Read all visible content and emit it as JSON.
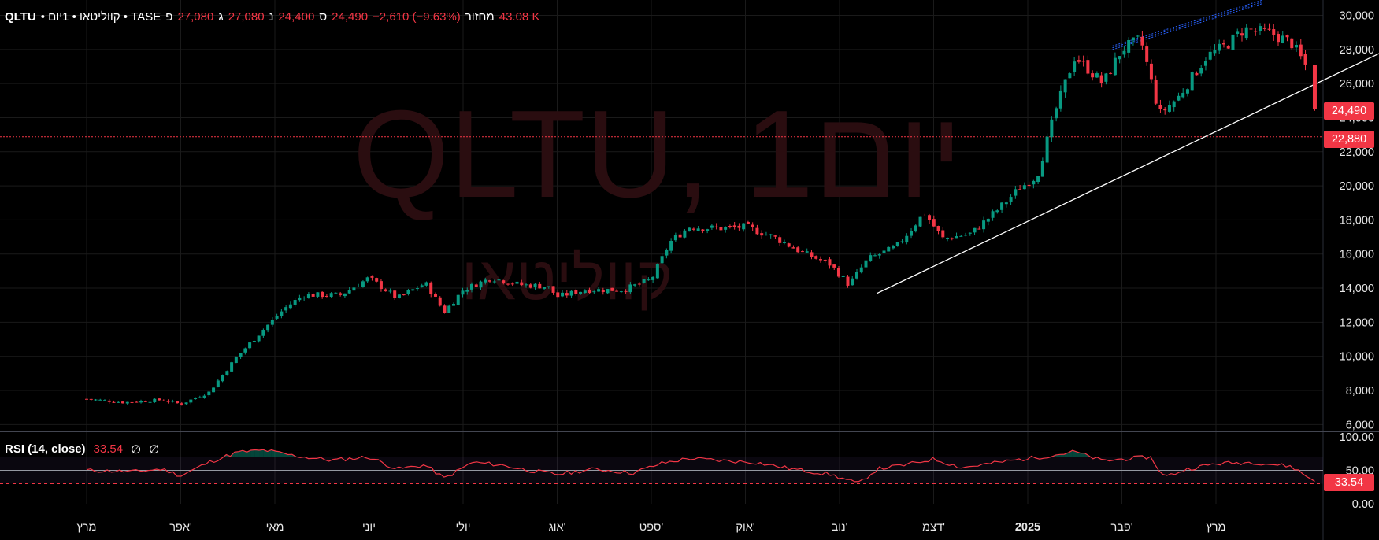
{
  "header": {
    "symbol": "QLTU",
    "meta": "• קווליטאו • 1יום • TASE",
    "open_label": "פ",
    "open": "27,080",
    "high_label": "ג",
    "high": "27,080",
    "low_label": "נ",
    "low": "24,400",
    "close_label": "ס",
    "close": "24,490",
    "change": "−2,610 (−9.63%)",
    "volume_label": "מחזור",
    "volume": "43.08 K"
  },
  "watermark": {
    "line1": "QLTU, 1יום",
    "line2": "קווליטאו"
  },
  "price_tags": {
    "last": "24,490",
    "level": "22,880"
  },
  "rsi": {
    "name": "RSI (14, close)",
    "value": "33.54",
    "empty1": "∅",
    "empty2": "∅",
    "tag": "33.54",
    "ticks": [
      "100.00",
      "50.00",
      "0.00"
    ]
  },
  "colors": {
    "up": "#089981",
    "down": "#f23645",
    "rsi_line": "#f23645",
    "trendline": "#ffffff",
    "channel": "#2962ff",
    "grid": "#1a1a1a"
  },
  "chart_data": {
    "type": "candlestick",
    "symbol": "QLTU",
    "exchange": "TASE",
    "interval": "1 day",
    "y_ticks": [
      6000,
      8000,
      10000,
      12000,
      14000,
      16000,
      18000,
      20000,
      22000,
      24000,
      26000,
      28000,
      30000
    ],
    "y_tick_labels": [
      "6,000",
      "8,000",
      "10,000",
      "12,000",
      "14,000",
      "16,000",
      "18,000",
      "20,000",
      "22,000",
      "24,000",
      "26,000",
      "28,000",
      "30,000"
    ],
    "ylim": [
      5600,
      30900
    ],
    "x_tick_labels": [
      "מרץ",
      "אפר'",
      "מאי",
      "יוני",
      "יולי",
      "אוג'",
      "ספט'",
      "אוק'",
      "נוב'",
      "דצמ'",
      "2025",
      "פבר'",
      "מרץ"
    ],
    "x_tick_month_index": [
      0,
      1,
      2,
      3,
      4,
      5,
      6,
      7,
      8,
      9,
      10,
      11,
      12
    ],
    "horizontal_line": 22880,
    "trendline": {
      "start": {
        "month": 8.4,
        "value": 13700
      },
      "end": {
        "month": 13.9,
        "value": 28200
      }
    },
    "channel_line": {
      "start": {
        "month": 10.9,
        "value": 28000
      },
      "end": {
        "month": 12.5,
        "value": 30700
      }
    },
    "close_points": [
      {
        "m": 0.0,
        "v": 7500
      },
      {
        "m": 0.4,
        "v": 7300
      },
      {
        "m": 0.8,
        "v": 7450
      },
      {
        "m": 1.0,
        "v": 7200
      },
      {
        "m": 1.3,
        "v": 7900
      },
      {
        "m": 1.6,
        "v": 10000
      },
      {
        "m": 1.9,
        "v": 11700
      },
      {
        "m": 2.1,
        "v": 12800
      },
      {
        "m": 2.3,
        "v": 13600
      },
      {
        "m": 2.7,
        "v": 13600
      },
      {
        "m": 3.0,
        "v": 14600
      },
      {
        "m": 3.3,
        "v": 13400
      },
      {
        "m": 3.6,
        "v": 14300
      },
      {
        "m": 3.8,
        "v": 12600
      },
      {
        "m": 4.0,
        "v": 13900
      },
      {
        "m": 4.3,
        "v": 14600
      },
      {
        "m": 4.6,
        "v": 14200
      },
      {
        "m": 4.9,
        "v": 14100
      },
      {
        "m": 5.0,
        "v": 13500
      },
      {
        "m": 5.3,
        "v": 13900
      },
      {
        "m": 5.7,
        "v": 13900
      },
      {
        "m": 6.0,
        "v": 14500
      },
      {
        "m": 6.2,
        "v": 16700
      },
      {
        "m": 6.4,
        "v": 17600
      },
      {
        "m": 6.7,
        "v": 17500
      },
      {
        "m": 7.0,
        "v": 17600
      },
      {
        "m": 7.3,
        "v": 17000
      },
      {
        "m": 7.6,
        "v": 16100
      },
      {
        "m": 7.9,
        "v": 15400
      },
      {
        "m": 8.1,
        "v": 14200
      },
      {
        "m": 8.3,
        "v": 15700
      },
      {
        "m": 8.6,
        "v": 16400
      },
      {
        "m": 8.9,
        "v": 18400
      },
      {
        "m": 9.1,
        "v": 16900
      },
      {
        "m": 9.4,
        "v": 17200
      },
      {
        "m": 9.7,
        "v": 18700
      },
      {
        "m": 9.9,
        "v": 19800
      },
      {
        "m": 10.1,
        "v": 20600
      },
      {
        "m": 10.3,
        "v": 24500
      },
      {
        "m": 10.5,
        "v": 27600
      },
      {
        "m": 10.8,
        "v": 26000
      },
      {
        "m": 11.0,
        "v": 28000
      },
      {
        "m": 11.2,
        "v": 28600
      },
      {
        "m": 11.4,
        "v": 24200
      },
      {
        "m": 11.6,
        "v": 25200
      },
      {
        "m": 11.9,
        "v": 27600
      },
      {
        "m": 12.1,
        "v": 28200
      },
      {
        "m": 12.3,
        "v": 29200
      },
      {
        "m": 12.6,
        "v": 28900
      },
      {
        "m": 12.8,
        "v": 28400
      },
      {
        "m": 12.95,
        "v": 27080
      },
      {
        "m": 13.05,
        "v": 24490
      }
    ],
    "last_candle": {
      "open": 27080,
      "high": 27080,
      "low": 24400,
      "close": 24490,
      "change": -2610,
      "change_pct": -9.63
    },
    "volume": "43.08 K",
    "rsi": {
      "period": 14,
      "source": "close",
      "levels": [
        70,
        50,
        30
      ],
      "ylim": [
        0,
        100
      ],
      "points": [
        {
          "m": 0.0,
          "v": 50
        },
        {
          "m": 0.5,
          "v": 48
        },
        {
          "m": 0.8,
          "v": 52
        },
        {
          "m": 1.0,
          "v": 42
        },
        {
          "m": 1.3,
          "v": 62
        },
        {
          "m": 1.6,
          "v": 77
        },
        {
          "m": 1.9,
          "v": 80
        },
        {
          "m": 2.2,
          "v": 72
        },
        {
          "m": 2.6,
          "v": 65
        },
        {
          "m": 3.0,
          "v": 70
        },
        {
          "m": 3.3,
          "v": 52
        },
        {
          "m": 3.6,
          "v": 58
        },
        {
          "m": 3.8,
          "v": 38
        },
        {
          "m": 4.1,
          "v": 62
        },
        {
          "m": 4.4,
          "v": 58
        },
        {
          "m": 4.7,
          "v": 50
        },
        {
          "m": 5.0,
          "v": 44
        },
        {
          "m": 5.4,
          "v": 52
        },
        {
          "m": 5.8,
          "v": 46
        },
        {
          "m": 6.1,
          "v": 60
        },
        {
          "m": 6.4,
          "v": 68
        },
        {
          "m": 6.8,
          "v": 64
        },
        {
          "m": 7.1,
          "v": 62
        },
        {
          "m": 7.5,
          "v": 52
        },
        {
          "m": 7.9,
          "v": 44
        },
        {
          "m": 8.2,
          "v": 30
        },
        {
          "m": 8.4,
          "v": 52
        },
        {
          "m": 8.7,
          "v": 58
        },
        {
          "m": 9.0,
          "v": 67
        },
        {
          "m": 9.3,
          "v": 54
        },
        {
          "m": 9.6,
          "v": 60
        },
        {
          "m": 9.9,
          "v": 66
        },
        {
          "m": 10.2,
          "v": 71
        },
        {
          "m": 10.5,
          "v": 78
        },
        {
          "m": 10.8,
          "v": 64
        },
        {
          "m": 11.1,
          "v": 68
        },
        {
          "m": 11.3,
          "v": 70
        },
        {
          "m": 11.45,
          "v": 40
        },
        {
          "m": 11.7,
          "v": 52
        },
        {
          "m": 12.0,
          "v": 60
        },
        {
          "m": 12.4,
          "v": 62
        },
        {
          "m": 12.8,
          "v": 56
        },
        {
          "m": 13.05,
          "v": 33.54
        }
      ]
    }
  }
}
